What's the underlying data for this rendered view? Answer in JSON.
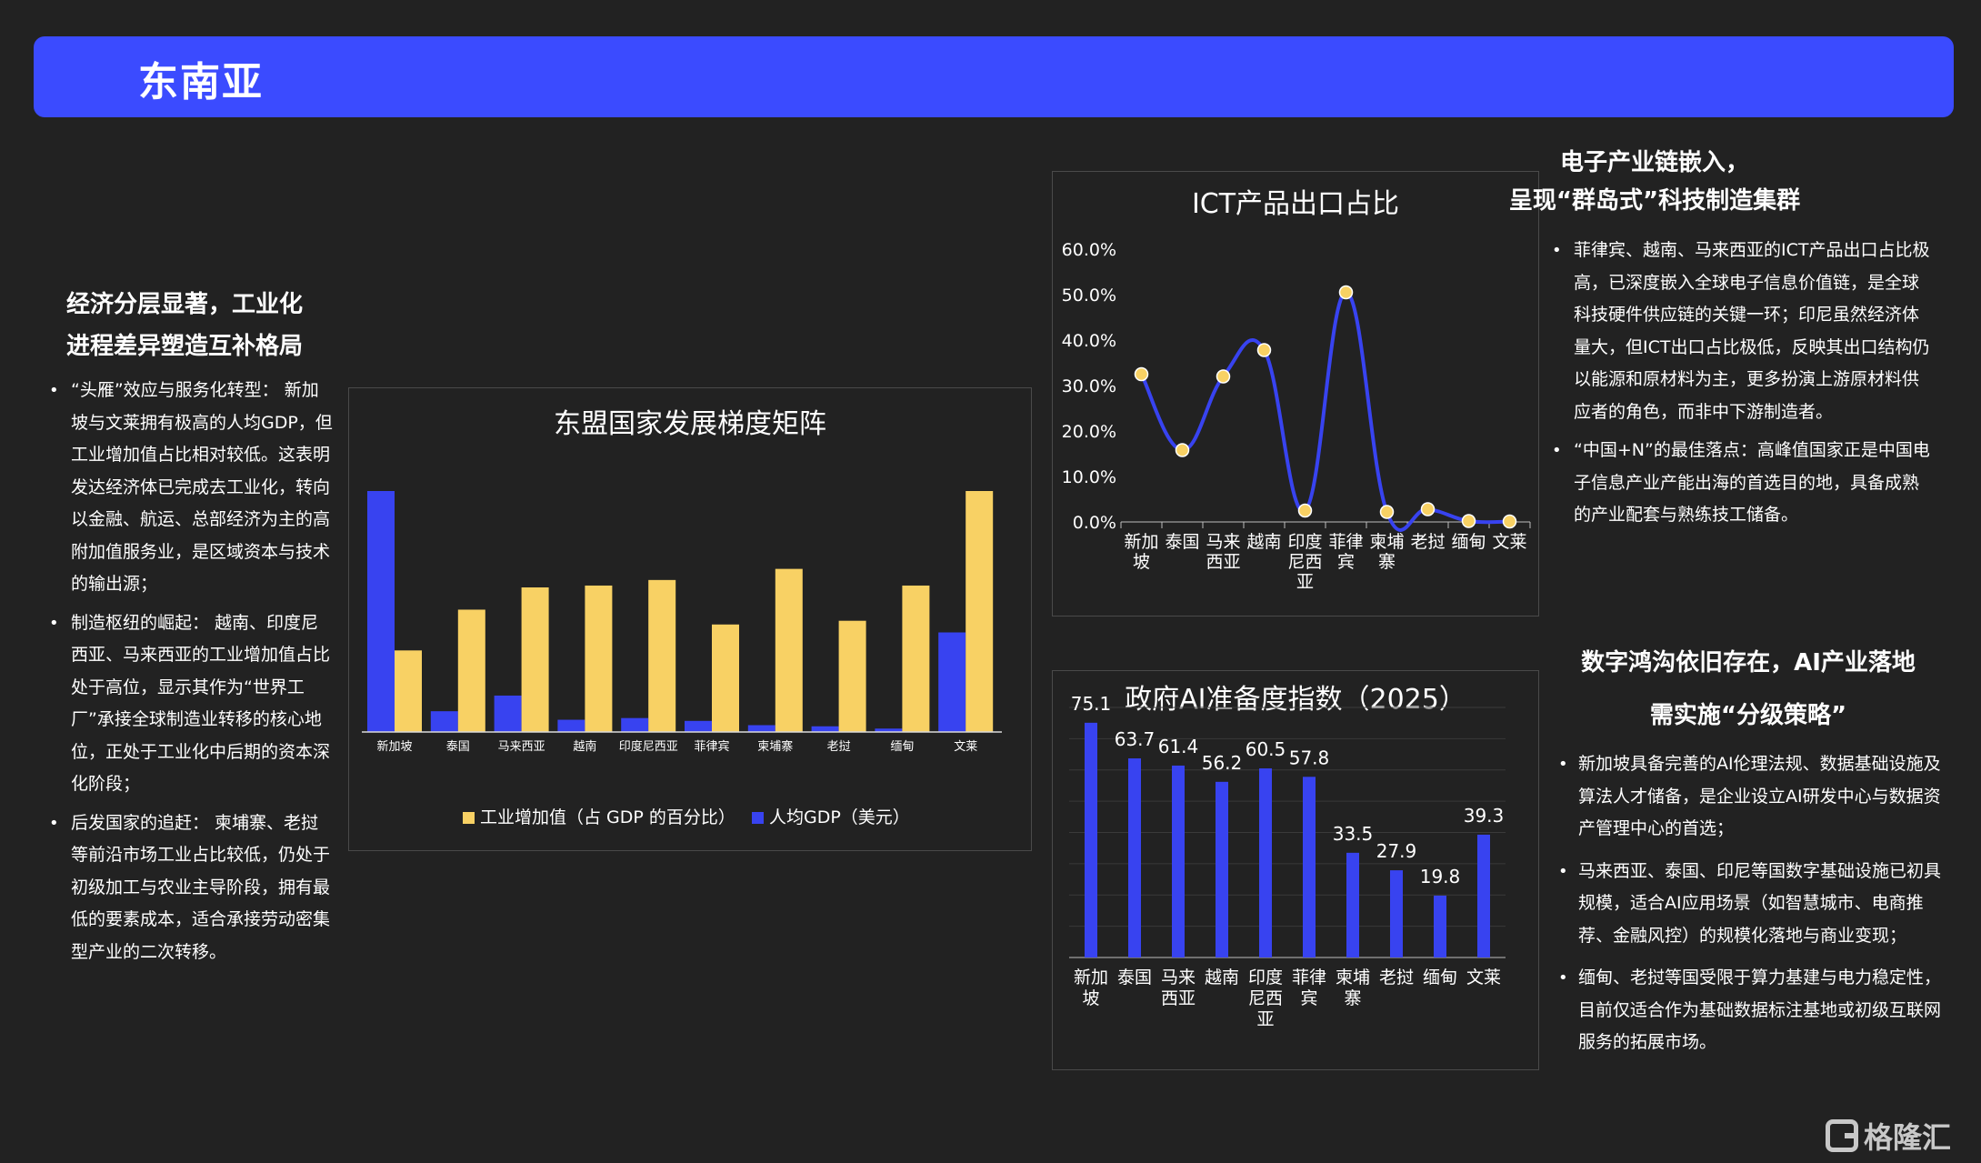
{
  "header": {
    "title": "东南亚"
  },
  "left": {
    "title_lines": [
      "经济分层显著，工业化",
      "进程差异塑造互补格局"
    ],
    "bullets": [
      "“头雁”效应与服务化转型： 新加坡与文莱拥有极高的人均GDP，但工业增加值占比相对较低。这表明发达经济体已完成去工业化，转向以金融、航运、总部经济为主的高附加值服务业，是区域资本与技术的输出源；",
      "制造枢纽的崛起： 越南、印度尼西亚、马来西亚的工业增加值占比处于高位，显示其作为“世界工厂”承接全球制造业转移的核心地位，正处于工业化中后期的资本深化阶段；",
      "后发国家的追赶： 柬埔寨、老挝等前沿市场工业占比较低，仍处于初级加工与农业主导阶段，拥有最低的要素成本，适合承接劳动密集型产业的二次转移。"
    ]
  },
  "right_top": {
    "title_lines": [
      "电子产业链嵌入，",
      "呈现“群岛式”科技制造集群"
    ],
    "bullets": [
      "菲律宾、越南、马来西亚的ICT产品出口占比极高，已深度嵌入全球电子信息价值链，是全球科技硬件供应链的关键一环；印尼虽然经济体量大，但ICT出口占比极低，反映其出口结构仍以能源和原材料为主，更多扮演上游原材料供应者的角色，而非中下游制造者。",
      "“中国+N”的最佳落点：高峰值国家正是中国电子信息产业产能出海的首选目的地，具备成熟的产业配套与熟练技工储备。"
    ]
  },
  "right_bottom": {
    "title_lines": [
      "数字鸿沟依旧存在，AI产业落地",
      "需实施“分级策略”"
    ],
    "bullets": [
      "新加坡具备完善的AI伦理法规、数据基础设施及算法人才储备，是企业设立AI研发中心与数据资产管理中心的首选；",
      "马来西亚、泰国、印尼等国数字基础设施已初具规模，适合AI应用场景（如智慧城市、电商推荐、金融风控）的规模化落地与商业变现；",
      "缅甸、老挝等国受限于算力基建与电力稳定性，目前仅适合作为基础数据标注基地或初级互联网服务的拓展市场。"
    ]
  },
  "chart_data": [
    {
      "type": "bar",
      "title": "东盟国家发展梯度矩阵",
      "categories": [
        "新加坡",
        "泰国",
        "马来西亚",
        "越南",
        "印度尼西亚",
        "菲律宾",
        "柬埔寨",
        "老挝",
        "缅甸",
        "文莱"
      ],
      "series": [
        {
          "name": "人均GDP（美元）",
          "color": "#3843f0",
          "values": [
            84700,
            7300,
            12800,
            4300,
            4900,
            3900,
            2400,
            2000,
            1200,
            35000
          ]
        },
        {
          "name": "工业增加值（占 GDP 的百分比）",
          "color": "#f8d164",
          "values": [
            22,
            33,
            39,
            39.5,
            41,
            29,
            44,
            30,
            39.5,
            65
          ]
        }
      ],
      "legend_order": [
        "工业增加值（占 GDP 的百分比）",
        "人均GDP（美元）"
      ],
      "legend": "bottom",
      "grid": false
    },
    {
      "type": "line",
      "title": "ICT产品出口占比",
      "categories": [
        "新加坡",
        "泰国",
        "马来西亚",
        "越南",
        "印度尼西亚",
        "菲律宾",
        "柬埔寨",
        "老挝",
        "缅甸",
        "文莱"
      ],
      "category_lines": [
        [
          "新加",
          "坡"
        ],
        [
          "泰国"
        ],
        [
          "马来",
          "西亚"
        ],
        [
          "越南"
        ],
        [
          "印度",
          "尼西",
          "亚"
        ],
        [
          "菲律",
          "宾"
        ],
        [
          "柬埔",
          "寨"
        ],
        [
          "老挝"
        ],
        [
          "缅甸"
        ],
        [
          "文莱"
        ]
      ],
      "values": [
        32.5,
        15.8,
        32.0,
        37.8,
        2.5,
        50.5,
        2.2,
        2.8,
        0.2,
        0.1
      ],
      "yticks": [
        "0.0%",
        "10.0%",
        "20.0%",
        "30.0%",
        "40.0%",
        "50.0%",
        "60.0%"
      ],
      "ylim": [
        0,
        60
      ],
      "line_color": "#3843f0",
      "marker_color": "#f8d164",
      "grid": false
    },
    {
      "type": "bar",
      "title": "政府AI准备度指数（2025）",
      "categories": [
        "新加坡",
        "泰国",
        "马来西亚",
        "越南",
        "印度尼西亚",
        "菲律宾",
        "柬埔寨",
        "老挝",
        "缅甸",
        "文莱"
      ],
      "category_lines": [
        [
          "新加",
          "坡"
        ],
        [
          "泰国"
        ],
        [
          "马来",
          "西亚"
        ],
        [
          "越南"
        ],
        [
          "印度",
          "尼西",
          "亚"
        ],
        [
          "菲律",
          "宾"
        ],
        [
          "柬埔",
          "寨"
        ],
        [
          "老挝"
        ],
        [
          "缅甸"
        ],
        [
          "文莱"
        ]
      ],
      "values": [
        75.1,
        63.7,
        61.4,
        56.2,
        60.5,
        57.8,
        33.5,
        27.9,
        19.8,
        39.3
      ],
      "labels": [
        "75.1",
        "63.7",
        "61.4",
        "56.2",
        "60.5",
        "57.8",
        "33.5",
        "27.9",
        "19.8",
        "39.3"
      ],
      "ylim": [
        0,
        80
      ],
      "bar_color": "#3843f0",
      "grid": true
    }
  ],
  "watermark": {
    "text": "格隆汇"
  }
}
